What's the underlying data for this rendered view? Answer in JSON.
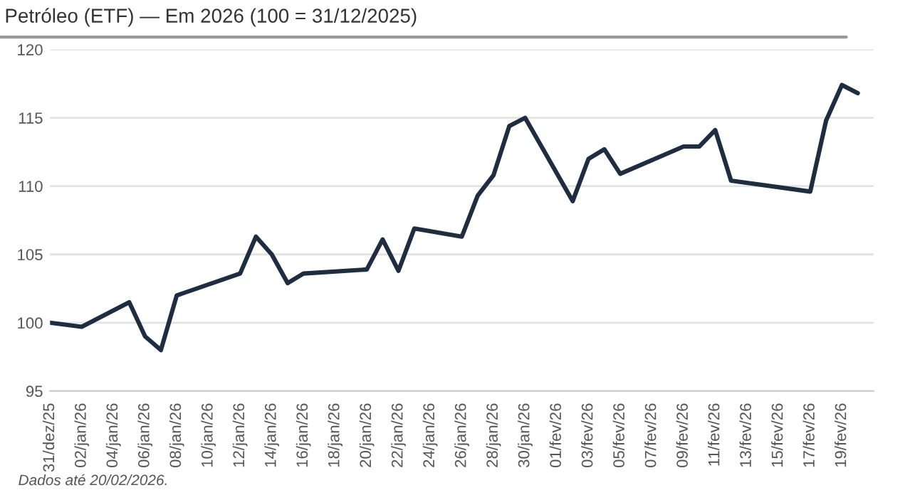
{
  "chart_data": {
    "type": "line",
    "title": "Petróleo (ETF) — Em 2026 (100 = 31/12/2025)",
    "annotations": [
      "Dados até 20/02/2026."
    ],
    "x": [
      "2025-12-31",
      "2026-01-02",
      "2026-01-05",
      "2026-01-06",
      "2026-01-07",
      "2026-01-08",
      "2026-01-12",
      "2026-01-13",
      "2026-01-14",
      "2026-01-15",
      "2026-01-16",
      "2026-01-20",
      "2026-01-21",
      "2026-01-22",
      "2026-01-23",
      "2026-01-26",
      "2026-01-27",
      "2026-01-28",
      "2026-01-29",
      "2026-01-30",
      "2026-02-02",
      "2026-02-03",
      "2026-02-04",
      "2026-02-05",
      "2026-02-09",
      "2026-02-10",
      "2026-02-11",
      "2026-02-12",
      "2026-02-17",
      "2026-02-18",
      "2026-02-19",
      "2026-02-20"
    ],
    "series": [
      {
        "color": "#1f2d40",
        "values": [
          100.0,
          99.7,
          101.5,
          99.0,
          98.0,
          102.0,
          103.6,
          106.3,
          105.0,
          102.9,
          103.6,
          103.9,
          106.1,
          103.8,
          106.9,
          106.3,
          109.3,
          110.8,
          114.4,
          115.0,
          108.9,
          112.0,
          112.7,
          110.9,
          112.9,
          112.9,
          114.1,
          110.4,
          109.6,
          114.8,
          117.4,
          116.8
        ]
      }
    ],
    "xlim": [
      "2025-12-31",
      "2026-02-21"
    ],
    "xticks": [
      {
        "value": "2025-12-31",
        "label": "31/dez/25"
      },
      {
        "value": "2026-01-02",
        "label": "02/jan/26"
      },
      {
        "value": "2026-01-04",
        "label": "04/jan/26"
      },
      {
        "value": "2026-01-06",
        "label": "06/jan/26"
      },
      {
        "value": "2026-01-08",
        "label": "08/jan/26"
      },
      {
        "value": "2026-01-10",
        "label": "10/jan/26"
      },
      {
        "value": "2026-01-12",
        "label": "12/jan/26"
      },
      {
        "value": "2026-01-14",
        "label": "14/jan/26"
      },
      {
        "value": "2026-01-16",
        "label": "16/jan/26"
      },
      {
        "value": "2026-01-18",
        "label": "18/jan/26"
      },
      {
        "value": "2026-01-20",
        "label": "20/jan/26"
      },
      {
        "value": "2026-01-22",
        "label": "22/jan/26"
      },
      {
        "value": "2026-01-24",
        "label": "24/jan/26"
      },
      {
        "value": "2026-01-26",
        "label": "26/jan/26"
      },
      {
        "value": "2026-01-28",
        "label": "28/jan/26"
      },
      {
        "value": "2026-01-30",
        "label": "30/jan/26"
      },
      {
        "value": "2026-02-01",
        "label": "01/fev/26"
      },
      {
        "value": "2026-02-03",
        "label": "03/fev/26"
      },
      {
        "value": "2026-02-05",
        "label": "05/fev/26"
      },
      {
        "value": "2026-02-07",
        "label": "07/fev/26"
      },
      {
        "value": "2026-02-09",
        "label": "09/fev/26"
      },
      {
        "value": "2026-02-11",
        "label": "11/fev/26"
      },
      {
        "value": "2026-02-13",
        "label": "13/fev/26"
      },
      {
        "value": "2026-02-15",
        "label": "15/fev/26"
      },
      {
        "value": "2026-02-17",
        "label": "17/fev/26"
      },
      {
        "value": "2026-02-19",
        "label": "19/fev/26"
      }
    ],
    "ylim": [
      95,
      120
    ],
    "yticks": [
      95,
      100,
      105,
      110,
      115,
      120
    ],
    "grid": "y",
    "line_style": "solid"
  }
}
